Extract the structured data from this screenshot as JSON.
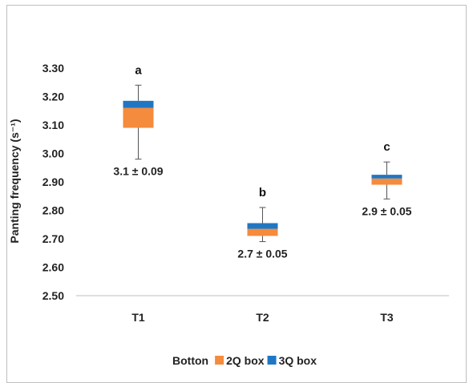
{
  "chart_data": {
    "type": "box",
    "ylabel": "Panting frequency (s⁻¹)",
    "xlabel": "",
    "ylim": [
      2.5,
      3.3
    ],
    "yticks": [
      2.5,
      2.6,
      2.7,
      2.8,
      2.9,
      3.0,
      3.1,
      3.2,
      3.3
    ],
    "ytick_labels": [
      "2.50",
      "2.60",
      "2.70",
      "2.80",
      "2.90",
      "3.00",
      "3.10",
      "3.20",
      "3.30"
    ],
    "categories": [
      "T1",
      "T2",
      "T3"
    ],
    "boxes": [
      {
        "category": "T1",
        "min": 2.98,
        "q1": 3.09,
        "median": 3.16,
        "q3": 3.185,
        "max": 3.24,
        "label": "3.1 ± 0.09",
        "letter": "a"
      },
      {
        "category": "T2",
        "min": 2.69,
        "q1": 2.71,
        "median": 2.735,
        "q3": 2.755,
        "max": 2.81,
        "label": "2.7 ± 0.05",
        "letter": "b"
      },
      {
        "category": "T3",
        "min": 2.84,
        "q1": 2.89,
        "median": 2.912,
        "q3": 2.925,
        "max": 2.97,
        "label": "2.9 ± 0.05",
        "letter": "c"
      }
    ],
    "legend": {
      "position": "bottom",
      "items": [
        {
          "name": "Botton",
          "color": ""
        },
        {
          "name": "2Q box",
          "color": "#f58b3c"
        },
        {
          "name": "3Q box",
          "color": "#1f77c4"
        }
      ]
    },
    "grid": false
  }
}
